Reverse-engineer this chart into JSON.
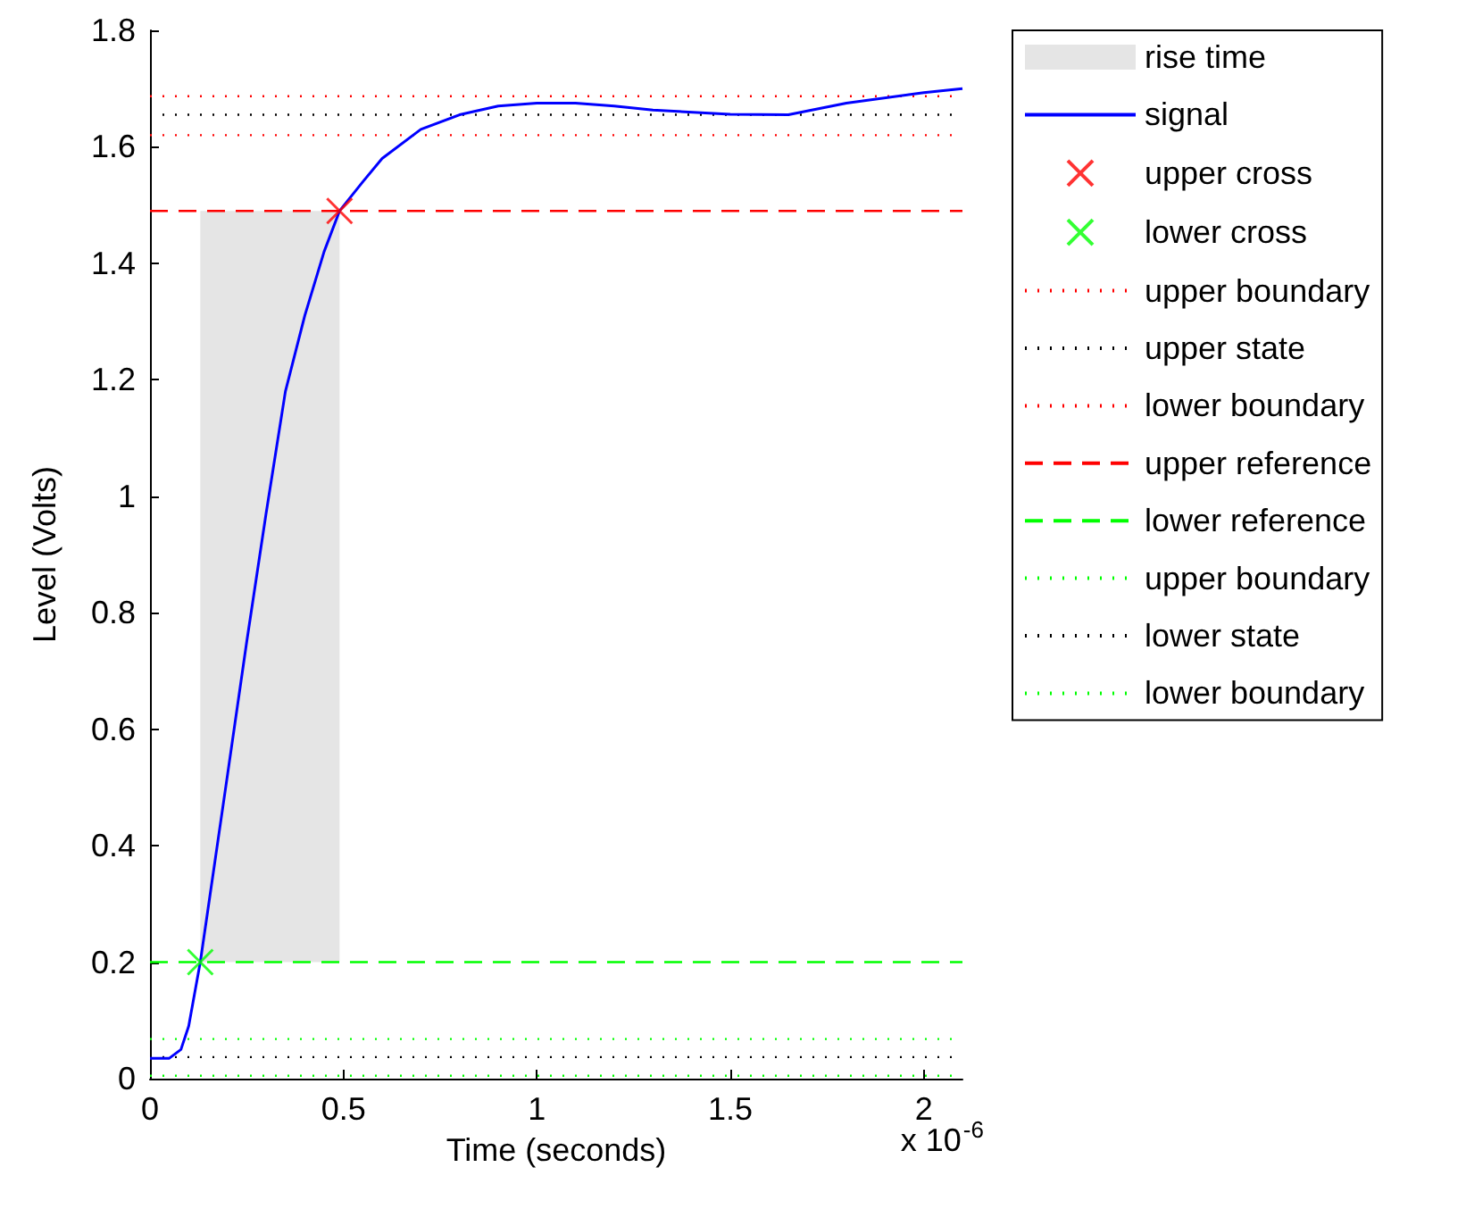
{
  "chart_data": {
    "type": "line",
    "xlabel": "Time (seconds)",
    "ylabel": "Level (Volts)",
    "xlim": [
      0,
      2.1
    ],
    "ylim": [
      0,
      1.8
    ],
    "xticks": [
      0,
      0.5,
      1,
      1.5,
      2
    ],
    "yticks": [
      0,
      0.2,
      0.4,
      0.6,
      0.8,
      1,
      1.2,
      1.4,
      1.6,
      1.8
    ],
    "grid": false,
    "legend": "top right",
    "annotations": [
      "x 10$^{-6}$"
    ],
    "bands": [
      {
        "axis": "x",
        "from": 0.13,
        "to": 0.49,
        "label": "rise time",
        "color": "#e5e5e5"
      }
    ],
    "series": [
      {
        "name": "signal",
        "color": "#0000ff",
        "marker": "none",
        "x": [
          0,
          0.05,
          0.08,
          0.1,
          0.13,
          0.2,
          0.25,
          0.3,
          0.35,
          0.4,
          0.45,
          0.49,
          0.55,
          0.6,
          0.7,
          0.8,
          0.9,
          1.0,
          1.1,
          1.2,
          1.3,
          1.5,
          1.65,
          1.8,
          2.0,
          2.1
        ],
        "values": [
          0.035,
          0.035,
          0.05,
          0.09,
          0.2,
          0.52,
          0.75,
          0.97,
          1.18,
          1.31,
          1.42,
          1.49,
          1.54,
          1.58,
          1.63,
          1.655,
          1.67,
          1.675,
          1.675,
          1.67,
          1.663,
          1.656,
          1.655,
          1.675,
          1.693,
          1.7
        ]
      },
      {
        "name": "upper cross",
        "type": "scatter",
        "color": "#ff0000",
        "marker": "cross",
        "x": [
          0.49
        ],
        "values": [
          1.49
        ]
      },
      {
        "name": "lower cross",
        "type": "scatter",
        "color": "#00ff00",
        "marker": "cross",
        "x": [
          0.13
        ],
        "values": [
          0.2
        ]
      }
    ],
    "ref_lines": [
      {
        "axis": "y",
        "value": 1.687,
        "label": "upper boundary",
        "color": "#ff0000",
        "line_style": "dotted"
      },
      {
        "axis": "y",
        "value": 1.655,
        "label": "upper state",
        "color": "#000000",
        "line_style": "dotted"
      },
      {
        "axis": "y",
        "value": 1.62,
        "label": "lower boundary",
        "color": "#ff0000",
        "line_style": "dotted"
      },
      {
        "axis": "y",
        "value": 1.49,
        "label": "upper reference",
        "color": "#ff0000",
        "line_style": "dashed"
      },
      {
        "axis": "y",
        "value": 0.2,
        "label": "lower reference",
        "color": "#00ff00",
        "line_style": "dashed"
      },
      {
        "axis": "y",
        "value": 0.068,
        "label": "upper boundary",
        "color": "#00ff00",
        "line_style": "dotted"
      },
      {
        "axis": "y",
        "value": 0.037,
        "label": "lower state",
        "color": "#000000",
        "line_style": "dotted"
      },
      {
        "axis": "y",
        "value": 0.005,
        "label": "lower boundary",
        "color": "#00ff00",
        "line_style": "dotted"
      }
    ]
  }
}
